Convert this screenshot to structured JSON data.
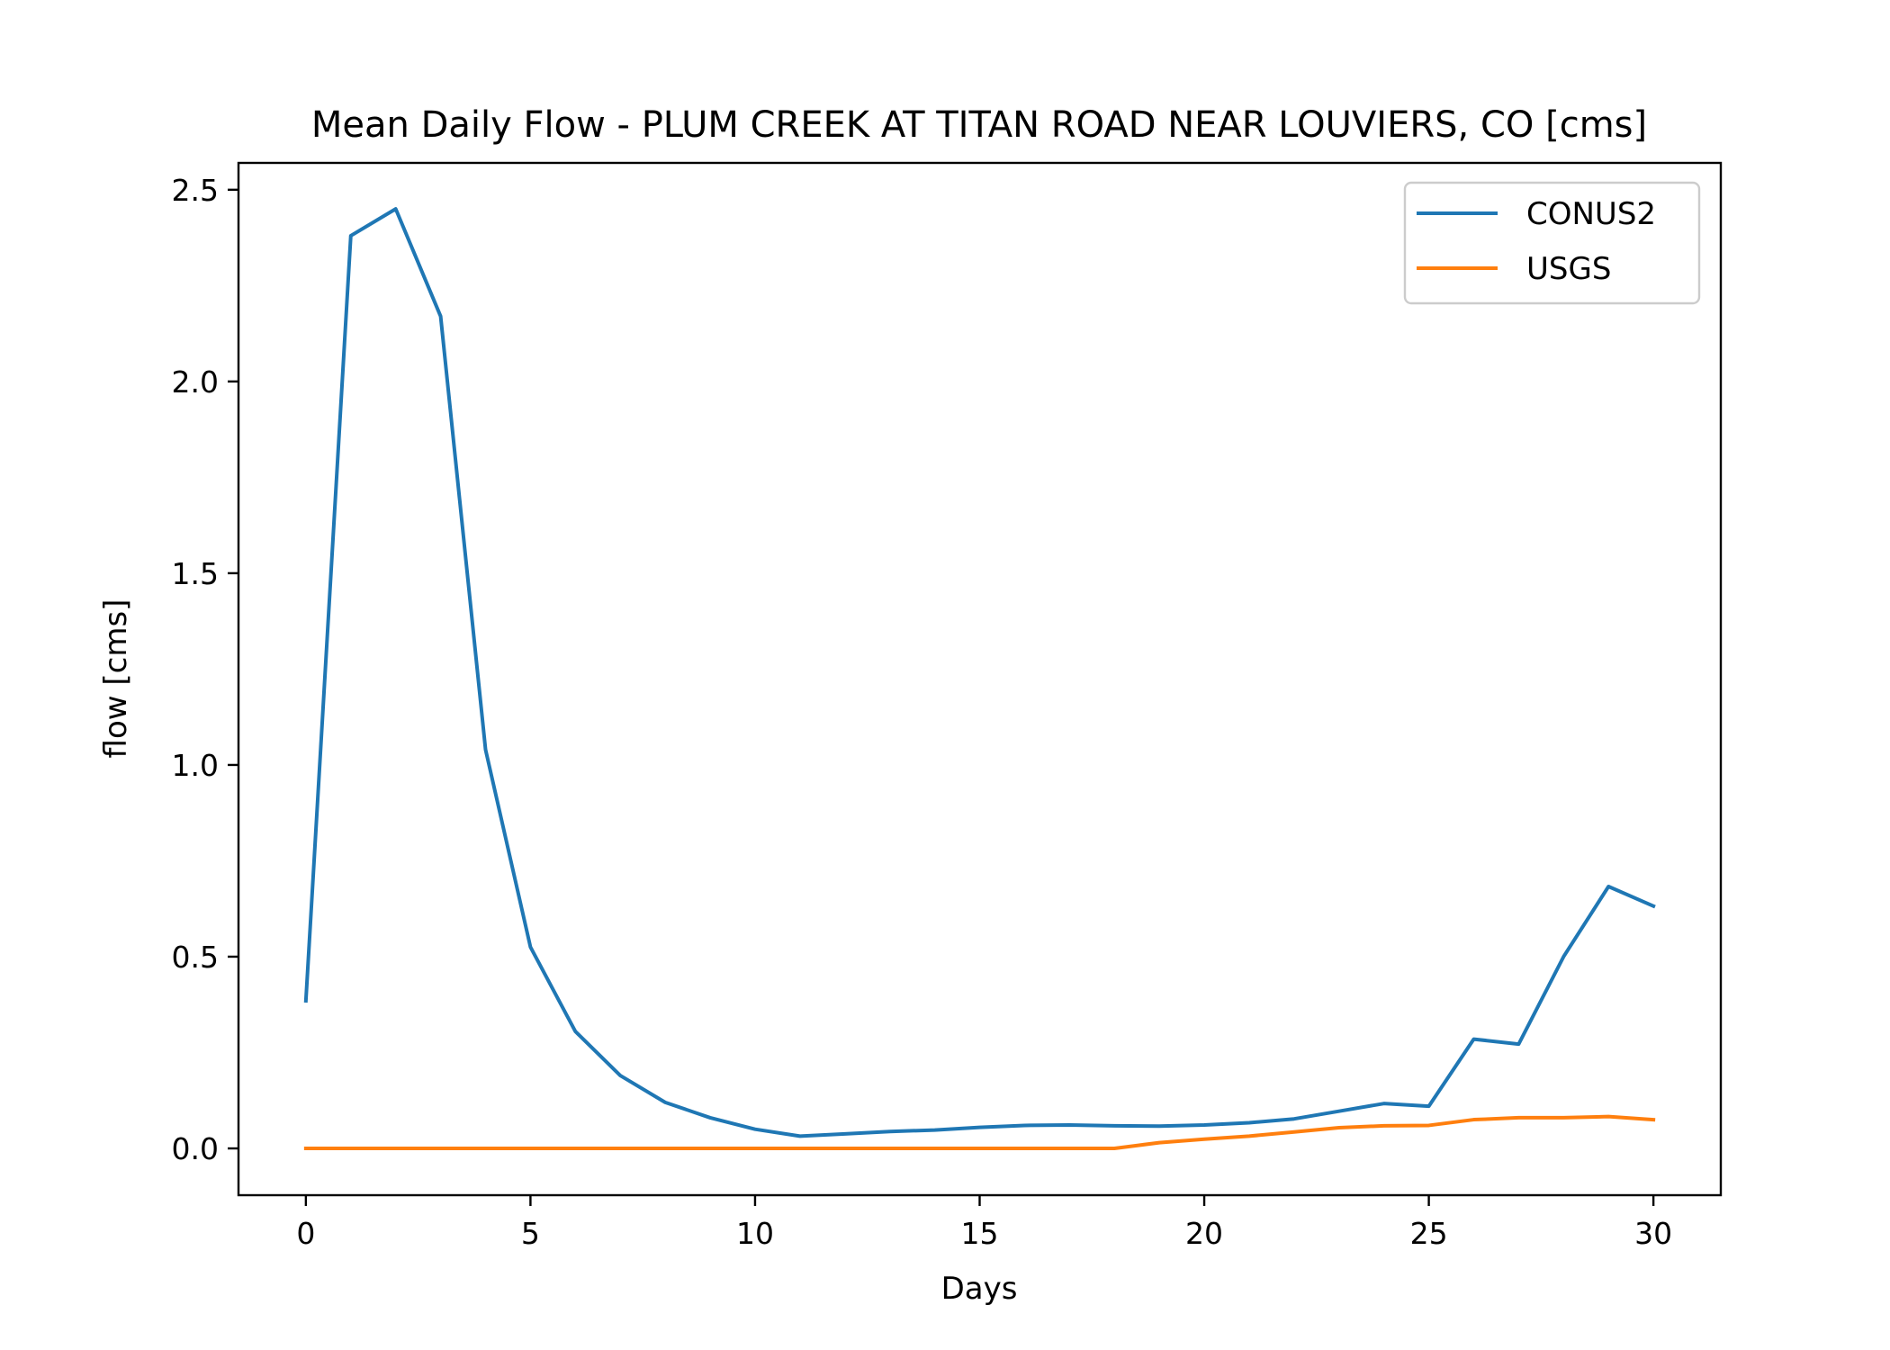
{
  "chart_data": {
    "type": "line",
    "title": "Mean Daily Flow - PLUM CREEK AT TITAN ROAD NEAR LOUVIERS, CO [cms]",
    "xlabel": "Days",
    "ylabel": "flow [cms]",
    "xlim": [
      -1.5,
      31.5
    ],
    "ylim": [
      -0.122,
      2.57
    ],
    "xticks": [
      0,
      5,
      10,
      15,
      20,
      25,
      30
    ],
    "xtick_labels": [
      "0",
      "5",
      "10",
      "15",
      "20",
      "25",
      "30"
    ],
    "yticks": [
      0.0,
      0.5,
      1.0,
      1.5,
      2.0,
      2.5
    ],
    "ytick_labels": [
      "0.0",
      "0.5",
      "1.0",
      "1.5",
      "2.0",
      "2.5"
    ],
    "grid": false,
    "legend_position": "top-right",
    "x": [
      0,
      1,
      2,
      3,
      4,
      5,
      6,
      7,
      8,
      9,
      10,
      11,
      12,
      13,
      14,
      15,
      16,
      17,
      18,
      19,
      20,
      21,
      22,
      23,
      24,
      25,
      26,
      27,
      28,
      29,
      30
    ],
    "series": [
      {
        "name": "CONUS2",
        "color": "#1f77b4",
        "values": [
          0.385,
          2.38,
          2.45,
          2.17,
          1.04,
          0.525,
          0.305,
          0.19,
          0.12,
          0.08,
          0.05,
          0.032,
          0.038,
          0.044,
          0.048,
          0.055,
          0.06,
          0.061,
          0.059,
          0.058,
          0.061,
          0.067,
          0.077,
          0.097,
          0.117,
          0.11,
          0.285,
          0.272,
          0.5,
          0.683,
          0.632
        ]
      },
      {
        "name": "USGS",
        "color": "#ff7f0e",
        "values": [
          0,
          0,
          0,
          0,
          0,
          0,
          0,
          0,
          0,
          0,
          0,
          0,
          0,
          0,
          0,
          0,
          0,
          0,
          0,
          0.015,
          0.024,
          0.032,
          0.043,
          0.054,
          0.059,
          0.06,
          0.075,
          0.08,
          0.08,
          0.083,
          0.075
        ]
      }
    ]
  }
}
